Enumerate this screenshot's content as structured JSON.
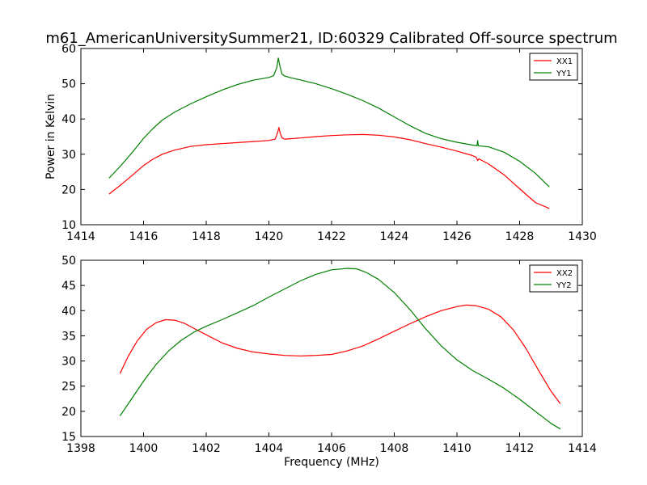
{
  "figure_title": "m61_AmericanUniversitySummer21, ID:60329 Calibrated Off-source spectrum",
  "chart_data": [
    {
      "type": "line",
      "title": "m61_AmericanUniversitySummer21, ID:60329 Calibrated Off-source spectrum",
      "xlabel": "",
      "ylabel": "Power in Kelvin",
      "xlim": [
        1414,
        1430
      ],
      "ylim": [
        10,
        60
      ],
      "xticks": [
        1414,
        1416,
        1418,
        1420,
        1422,
        1424,
        1426,
        1428,
        1430
      ],
      "yticks": [
        10,
        20,
        30,
        40,
        50,
        60
      ],
      "legend_position": "top-right",
      "grid": false,
      "series": [
        {
          "name": "XX1",
          "color": "#ff0000",
          "x": [
            1414.9,
            1415.3,
            1415.7,
            1416.0,
            1416.3,
            1416.6,
            1417.0,
            1417.5,
            1418.0,
            1418.5,
            1419.0,
            1419.5,
            1420.0,
            1420.2,
            1420.28,
            1420.32,
            1420.36,
            1420.42,
            1420.5,
            1420.7,
            1421.0,
            1421.5,
            1422.0,
            1422.5,
            1423.0,
            1423.5,
            1424.0,
            1424.5,
            1425.0,
            1425.5,
            1426.0,
            1426.5,
            1426.62,
            1426.66,
            1426.7,
            1427.0,
            1427.5,
            1428.0,
            1428.5,
            1428.95
          ],
          "y": [
            18.7,
            21.5,
            24.5,
            26.8,
            28.6,
            30.0,
            31.2,
            32.2,
            32.7,
            33.0,
            33.3,
            33.6,
            33.9,
            34.3,
            36.2,
            37.6,
            36.0,
            34.6,
            34.3,
            34.4,
            34.6,
            35.0,
            35.3,
            35.5,
            35.6,
            35.4,
            34.9,
            34.1,
            33.0,
            32.0,
            30.9,
            29.6,
            29.1,
            28.2,
            28.7,
            27.3,
            24.2,
            20.2,
            16.3,
            14.6
          ]
        },
        {
          "name": "YY1",
          "color": "#008000",
          "x": [
            1414.9,
            1415.3,
            1415.7,
            1416.0,
            1416.3,
            1416.6,
            1417.0,
            1417.5,
            1418.0,
            1418.5,
            1419.0,
            1419.5,
            1420.0,
            1420.15,
            1420.25,
            1420.3,
            1420.35,
            1420.42,
            1420.5,
            1420.7,
            1421.0,
            1421.5,
            1422.0,
            1422.5,
            1423.0,
            1423.5,
            1424.0,
            1424.5,
            1425.0,
            1425.5,
            1426.0,
            1426.5,
            1426.64,
            1426.66,
            1426.68,
            1427.0,
            1427.5,
            1428.0,
            1428.5,
            1428.95
          ],
          "y": [
            23.2,
            27.0,
            31.2,
            34.5,
            37.3,
            39.7,
            42.0,
            44.3,
            46.3,
            48.2,
            49.8,
            51.0,
            51.8,
            52.3,
            54.5,
            57.3,
            55.0,
            52.7,
            52.2,
            51.7,
            51.1,
            50.0,
            48.6,
            47.0,
            45.2,
            43.1,
            40.6,
            38.1,
            35.9,
            34.4,
            33.4,
            32.6,
            32.4,
            33.9,
            32.4,
            32.1,
            30.6,
            28.0,
            24.6,
            20.7
          ]
        }
      ]
    },
    {
      "type": "line",
      "title": "",
      "xlabel": "Frequency (MHz)",
      "ylabel": "",
      "xlim": [
        1398,
        1414
      ],
      "ylim": [
        15,
        50
      ],
      "xticks": [
        1398,
        1400,
        1402,
        1404,
        1406,
        1408,
        1410,
        1412,
        1414
      ],
      "yticks": [
        15,
        20,
        25,
        30,
        35,
        40,
        45,
        50
      ],
      "legend_position": "top-right",
      "grid": false,
      "series": [
        {
          "name": "XX2",
          "color": "#ff0000",
          "x": [
            1399.25,
            1399.5,
            1399.8,
            1400.1,
            1400.4,
            1400.7,
            1401.0,
            1401.3,
            1401.6,
            1402.0,
            1402.5,
            1403.0,
            1403.5,
            1404.0,
            1404.5,
            1405.0,
            1405.5,
            1406.0,
            1406.5,
            1407.0,
            1407.5,
            1408.0,
            1408.5,
            1409.0,
            1409.5,
            1410.0,
            1410.3,
            1410.6,
            1411.0,
            1411.4,
            1411.8,
            1412.2,
            1412.6,
            1413.0,
            1413.3
          ],
          "y": [
            27.5,
            30.8,
            34.0,
            36.3,
            37.6,
            38.2,
            38.1,
            37.5,
            36.5,
            35.2,
            33.6,
            32.5,
            31.8,
            31.4,
            31.1,
            31.0,
            31.1,
            31.3,
            32.0,
            33.0,
            34.4,
            35.9,
            37.4,
            38.8,
            40.0,
            40.8,
            41.1,
            41.0,
            40.3,
            38.8,
            36.2,
            32.5,
            28.2,
            24.0,
            21.5
          ]
        },
        {
          "name": "YY2",
          "color": "#008000",
          "x": [
            1399.25,
            1399.6,
            1400.0,
            1400.4,
            1400.8,
            1401.2,
            1401.6,
            1402.0,
            1402.5,
            1403.0,
            1403.5,
            1404.0,
            1404.5,
            1405.0,
            1405.5,
            1406.0,
            1406.5,
            1406.8,
            1407.1,
            1407.5,
            1408.0,
            1408.5,
            1409.0,
            1409.5,
            1410.0,
            1410.5,
            1411.0,
            1411.5,
            1412.0,
            1412.5,
            1413.0,
            1413.3
          ],
          "y": [
            19.1,
            22.3,
            26.0,
            29.3,
            32.0,
            34.1,
            35.7,
            36.9,
            38.2,
            39.6,
            41.0,
            42.7,
            44.3,
            45.9,
            47.2,
            48.1,
            48.4,
            48.3,
            47.6,
            46.2,
            43.6,
            40.2,
            36.4,
            33.0,
            30.2,
            28.1,
            26.4,
            24.6,
            22.4,
            20.0,
            17.6,
            16.5
          ]
        }
      ]
    }
  ]
}
